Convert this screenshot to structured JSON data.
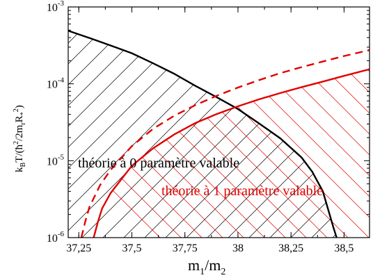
{
  "chart_data": {
    "type": "line",
    "title": "",
    "xlabel": {
      "main": "m",
      "sub1": "1",
      "slash": "/m",
      "sub2": "2"
    },
    "ylabel": {
      "k": "k",
      "ksub": "B",
      "rest": "T/(ħ",
      "sup2a": "2",
      "rest2": "/2m",
      "rsub": "r",
      "R": "R",
      "Rsub": "*",
      "Rsup": "2",
      "close": ")"
    },
    "xlim": [
      37.2,
      38.62
    ],
    "ylim_log10": [
      -6,
      -3
    ],
    "y_scale": "log",
    "grid": false,
    "x_ticks": [
      {
        "value": 37.25,
        "label": "37,25"
      },
      {
        "value": 37.5,
        "label": "37,5"
      },
      {
        "value": 37.75,
        "label": "37,75"
      },
      {
        "value": 38.0,
        "label": "38"
      },
      {
        "value": 38.25,
        "label": "38,25"
      },
      {
        "value": 38.5,
        "label": "38,5"
      }
    ],
    "y_ticks": [
      {
        "exp": -6,
        "base": "10",
        "sup": "-6"
      },
      {
        "exp": -5,
        "base": "10",
        "sup": "-5"
      },
      {
        "exp": -4,
        "base": "10",
        "sup": "-4"
      },
      {
        "exp": -3,
        "base": "10",
        "sup": "-3"
      }
    ],
    "series": [
      {
        "color": "#000000",
        "style": "solid",
        "points": [
          [
            37.2,
            0.00049
          ],
          [
            37.3,
            0.000395
          ],
          [
            37.4,
            0.000315
          ],
          [
            37.5,
            0.00025
          ],
          [
            37.6,
            0.000185
          ],
          [
            37.7,
            0.000135
          ],
          [
            37.8,
            9.4e-05
          ],
          [
            37.9,
            6.7e-05
          ],
          [
            38.0,
            4.7e-05
          ],
          [
            38.1,
            3.05e-05
          ],
          [
            38.2,
            1.95e-05
          ],
          [
            38.3,
            1.1e-05
          ],
          [
            38.35,
            7.2e-06
          ],
          [
            38.4,
            4e-06
          ],
          [
            38.45,
            1.35e-06
          ],
          [
            38.465,
            1e-06
          ]
        ]
      },
      {
        "color": "#e00000",
        "style": "dashed",
        "points": [
          [
            37.262,
            1e-06
          ],
          [
            37.28,
            1.6e-06
          ],
          [
            37.3,
            2.5e-06
          ],
          [
            37.35,
            4.8e-06
          ],
          [
            37.4,
            7.6e-06
          ],
          [
            37.5,
            1.55e-05
          ],
          [
            37.6,
            2.6e-05
          ],
          [
            37.7,
            3.85e-05
          ],
          [
            37.8,
            5.3e-05
          ],
          [
            37.9,
            7e-05
          ],
          [
            38.0,
            8.95e-05
          ],
          [
            38.1,
            0.000112
          ],
          [
            38.2,
            0.000138
          ],
          [
            38.3,
            0.000165
          ],
          [
            38.4,
            0.000195
          ],
          [
            38.5,
            0.00023
          ],
          [
            38.62,
            0.000275
          ]
        ]
      },
      {
        "color": "#e00000",
        "style": "solid",
        "points": [
          [
            37.32,
            1e-06
          ],
          [
            37.34,
            1.6e-06
          ],
          [
            37.36,
            2.4e-06
          ],
          [
            37.4,
            3.8e-06
          ],
          [
            37.5,
            8.6e-06
          ],
          [
            37.6,
            1.45e-05
          ],
          [
            37.7,
            2.2e-05
          ],
          [
            37.8,
            3.1e-05
          ],
          [
            37.9,
            4.05e-05
          ],
          [
            38.0,
            5.1e-05
          ],
          [
            38.1,
            6.3e-05
          ],
          [
            38.2,
            7.6e-05
          ],
          [
            38.3,
            9.05e-05
          ],
          [
            38.4,
            0.000107
          ],
          [
            38.5,
            0.000127
          ],
          [
            38.62,
            0.000155
          ]
        ]
      }
    ],
    "annotations": [
      {
        "text": "théorie à 0 paramètre valable",
        "color": "#000000"
      },
      {
        "text": "théorie à 1 paramètre valable",
        "color": "#e00000"
      }
    ]
  }
}
